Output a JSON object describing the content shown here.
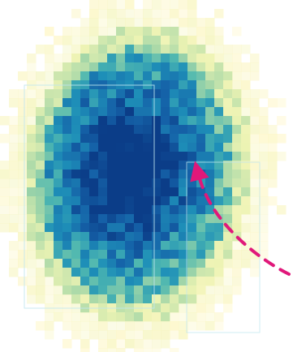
{
  "figure": {
    "description_visible_text": "",
    "colormap": [
      "#fff7c8",
      "#ecf3b3",
      "#a8d8a8",
      "#50b8b0",
      "#1e8fb8",
      "#1562a8",
      "#0b3d88"
    ],
    "overlay_rect_color": "#bfe6ef",
    "arrow_color": "#e0187a"
  }
}
